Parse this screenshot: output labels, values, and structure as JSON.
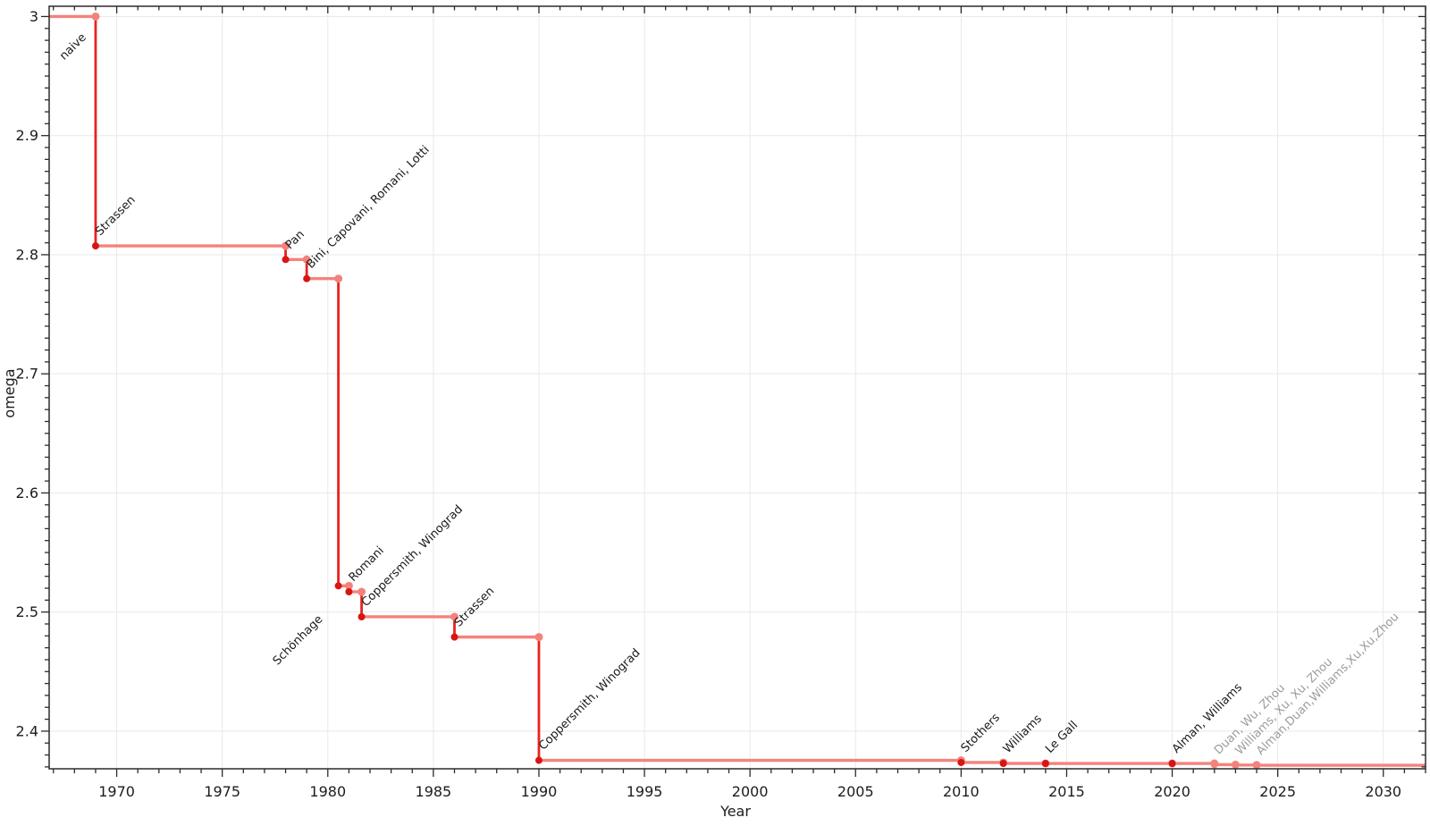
{
  "figure": {
    "background": "#ffffff"
  },
  "chart_data": {
    "type": "line",
    "subtype": "step",
    "title": "",
    "xlabel": "Year",
    "ylabel": "omega",
    "xlim": [
      1966.8,
      2032
    ],
    "ylim": [
      2.3684,
      3.0086
    ],
    "x_ticks": [
      1970,
      1975,
      1980,
      1985,
      1990,
      1995,
      2000,
      2005,
      2010,
      2015,
      2020,
      2025,
      2030
    ],
    "y_ticks": [
      2.4,
      2.5,
      2.6,
      2.7,
      2.8,
      2.9,
      3
    ],
    "x_minor_step": 1,
    "y_minor_step": 0.01,
    "grid": "major",
    "legend": "none",
    "baseline": {
      "label": "naive",
      "omega": 3
    },
    "events": [
      {
        "name": "Strassen",
        "year": 1969,
        "omega": 2.8074
      },
      {
        "name": "Pan",
        "year": 1978,
        "omega": 2.796
      },
      {
        "name": "Bini, Capovani, Romani, Lotti",
        "year": 1979,
        "omega": 2.7799
      },
      {
        "name": "Schönhage",
        "year": 1980.5,
        "omega": 2.522,
        "label_placement": "below-left"
      },
      {
        "name": "Romani",
        "year": 1981,
        "omega": 2.517
      },
      {
        "name": "Coppersmith, Winograd",
        "year": 1981.6,
        "omega": 2.496
      },
      {
        "name": "Strassen",
        "year": 1986,
        "omega": 2.479
      },
      {
        "name": "Coppersmith, Winograd",
        "year": 1990,
        "omega": 2.3755
      },
      {
        "name": "Stothers",
        "year": 2010,
        "omega": 2.3737
      },
      {
        "name": "Williams",
        "year": 2012,
        "omega": 2.3729
      },
      {
        "name": "Le Gall",
        "year": 2014,
        "omega": 2.3728639
      },
      {
        "name": "Alman, Williams",
        "year": 2020,
        "omega": 2.3728596
      },
      {
        "name": "Duan, Wu, Zhou",
        "year": 2022,
        "omega": 2.371866,
        "provisional": true
      },
      {
        "name": "Williams, Xu, Xu, Zhou",
        "year": 2023,
        "omega": 2.371552,
        "provisional": true
      },
      {
        "name": "Alman,Duan,Williams,Xu,Xu,Zhou",
        "year": 2024,
        "omega": 2.371339,
        "provisional": true
      }
    ],
    "colors": {
      "flat_line": "#f4827c",
      "drop_line": "#e52421",
      "point_current": "#d81512",
      "point_previous": "#f4827c",
      "annotation_text": "#1a1a1a",
      "annotation_text_provisional": "#9c9c9c",
      "grid_line": "#e9e9e9",
      "axis_frame": "#2b2b2b",
      "tick_label": "#1c1c1c"
    }
  }
}
